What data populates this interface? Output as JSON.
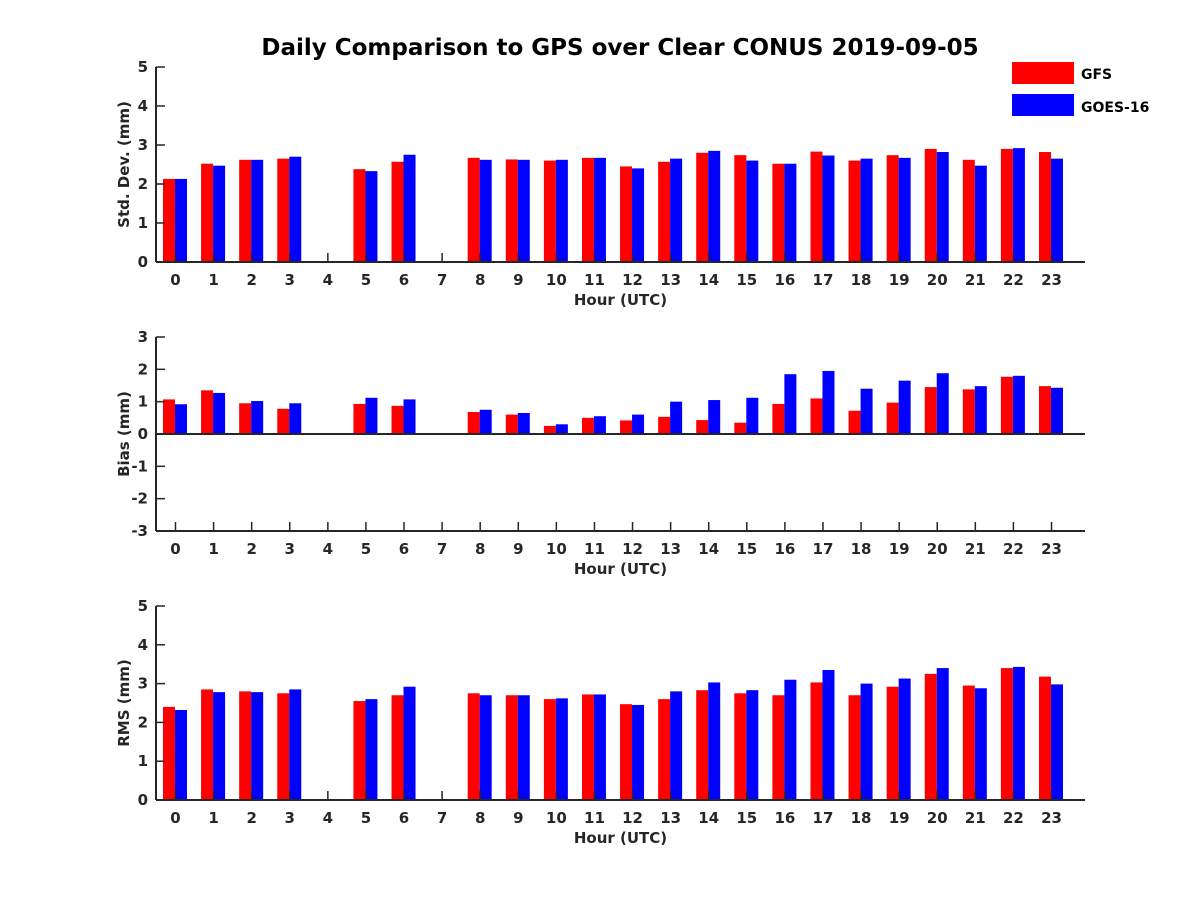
{
  "chart_data": {
    "title": "Daily Comparison to GPS over Clear CONUS 2019-09-05",
    "legend": {
      "placement": "top-right",
      "entries": [
        {
          "name": "GFS",
          "color": "#ff0000"
        },
        {
          "name": "GOES-16",
          "color": "#0000ff"
        }
      ]
    },
    "categories": [
      0,
      1,
      2,
      3,
      4,
      5,
      6,
      7,
      8,
      9,
      10,
      11,
      12,
      13,
      14,
      15,
      16,
      17,
      18,
      19,
      20,
      21,
      22,
      23
    ],
    "panels": [
      {
        "id": "stddev",
        "type": "bar",
        "xlabel": "Hour (UTC)",
        "ylabel": "Std. Dev. (mm)",
        "ylim": [
          0,
          5
        ],
        "yticks": [
          0,
          1,
          2,
          3,
          4,
          5
        ],
        "series": [
          {
            "name": "GFS",
            "values": [
              2.13,
              2.52,
              2.62,
              2.65,
              null,
              2.38,
              2.57,
              null,
              2.67,
              2.63,
              2.6,
              2.67,
              2.45,
              2.57,
              2.8,
              2.74,
              2.52,
              2.83,
              2.6,
              2.74,
              2.9,
              2.62,
              2.9,
              2.82
            ]
          },
          {
            "name": "GOES-16",
            "values": [
              2.13,
              2.47,
              2.62,
              2.7,
              null,
              2.33,
              2.75,
              null,
              2.62,
              2.62,
              2.62,
              2.67,
              2.4,
              2.65,
              2.85,
              2.6,
              2.52,
              2.73,
              2.65,
              2.67,
              2.82,
              2.47,
              2.92,
              2.65
            ]
          }
        ]
      },
      {
        "id": "bias",
        "type": "bar",
        "xlabel": "Hour (UTC)",
        "ylabel": "Bias (mm)",
        "ylim": [
          -3,
          3
        ],
        "yticks": [
          -3,
          -2,
          -1,
          0,
          1,
          2,
          3
        ],
        "series": [
          {
            "name": "GFS",
            "values": [
              1.07,
              1.35,
              0.95,
              0.78,
              null,
              0.93,
              0.87,
              null,
              0.68,
              0.6,
              0.25,
              0.5,
              0.42,
              0.53,
              0.43,
              0.35,
              0.93,
              1.1,
              0.72,
              0.97,
              1.45,
              1.38,
              1.77,
              1.48
            ]
          },
          {
            "name": "GOES-16",
            "values": [
              0.92,
              1.27,
              1.02,
              0.95,
              null,
              1.12,
              1.07,
              null,
              0.75,
              0.65,
              0.3,
              0.55,
              0.6,
              1.0,
              1.05,
              1.12,
              1.85,
              1.95,
              1.4,
              1.65,
              1.88,
              1.48,
              1.8,
              1.43
            ]
          }
        ]
      },
      {
        "id": "rms",
        "type": "bar",
        "xlabel": "Hour (UTC)",
        "ylabel": "RMS (mm)",
        "ylim": [
          0,
          5
        ],
        "yticks": [
          0,
          1,
          2,
          3,
          4,
          5
        ],
        "series": [
          {
            "name": "GFS",
            "values": [
              2.4,
              2.85,
              2.8,
              2.75,
              null,
              2.55,
              2.7,
              null,
              2.75,
              2.7,
              2.6,
              2.72,
              2.47,
              2.6,
              2.83,
              2.75,
              2.7,
              3.03,
              2.7,
              2.92,
              3.25,
              2.95,
              3.4,
              3.18
            ]
          },
          {
            "name": "GOES-16",
            "values": [
              2.32,
              2.78,
              2.78,
              2.85,
              null,
              2.6,
              2.92,
              null,
              2.7,
              2.7,
              2.62,
              2.72,
              2.45,
              2.8,
              3.03,
              2.83,
              3.1,
              3.35,
              3.0,
              3.13,
              3.4,
              2.88,
              3.43,
              2.98
            ]
          }
        ]
      }
    ]
  }
}
